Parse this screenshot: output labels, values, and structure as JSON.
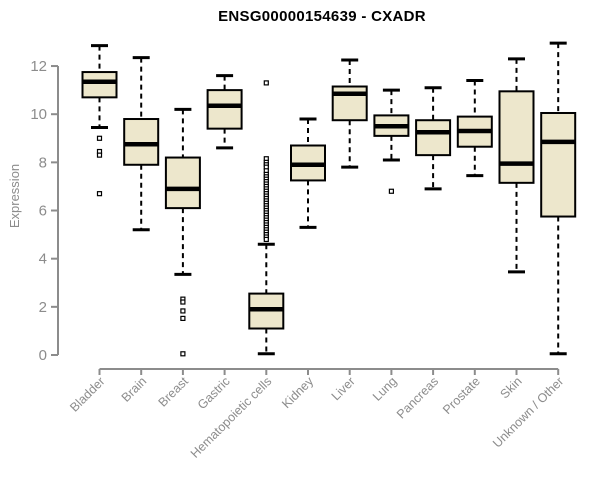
{
  "chart_data": {
    "type": "boxplot",
    "title": "ENSG00000154639 - CXADR",
    "ylabel": "Expression",
    "xlabel": "",
    "ylim": [
      0,
      13
    ],
    "yticks": [
      0,
      2,
      4,
      6,
      8,
      10,
      12
    ],
    "grid": false,
    "legend": "none",
    "colors": {
      "box_fill": "#EDE7CC",
      "box_stroke": "#000000",
      "median": "#000000",
      "whisker": "#000000",
      "outlier_fill": "#FFFFFF",
      "outlier_stroke": "#000000",
      "axis": "#8C8C8C",
      "tick_label": "#8C8C8C",
      "title": "#000000"
    },
    "categories": [
      "Bladder",
      "Brain",
      "Breast",
      "Gastric",
      "Hematopoietic cells",
      "Kidney",
      "Liver",
      "Lung",
      "Pancreas",
      "Prostate",
      "Skin",
      "Unknown / Other"
    ],
    "boxes": [
      {
        "label": "Bladder",
        "whisker_low": 9.45,
        "q1": 10.7,
        "median": 11.35,
        "q3": 11.75,
        "whisker_high": 12.85,
        "outliers": [
          9.0,
          8.45,
          8.3,
          6.7
        ]
      },
      {
        "label": "Brain",
        "whisker_low": 5.2,
        "q1": 7.9,
        "median": 8.75,
        "q3": 9.8,
        "whisker_high": 12.35,
        "outliers": []
      },
      {
        "label": "Breast",
        "whisker_low": 3.35,
        "q1": 6.1,
        "median": 6.9,
        "q3": 8.2,
        "whisker_high": 10.2,
        "outliers": [
          2.32,
          2.2,
          1.83,
          1.52,
          0.05
        ]
      },
      {
        "label": "Gastric",
        "whisker_low": 8.6,
        "q1": 9.4,
        "median": 10.35,
        "q3": 11.0,
        "whisker_high": 11.6,
        "outliers": []
      },
      {
        "label": "Hematopoietic cells",
        "whisker_low": 0.05,
        "q1": 1.1,
        "median": 1.9,
        "q3": 2.55,
        "whisker_high": 4.6,
        "outliers": [
          11.3,
          8.15,
          8.0,
          7.9,
          7.8,
          7.65,
          7.5,
          7.4,
          7.3,
          7.2,
          7.1,
          7.0,
          6.9,
          6.8,
          6.7,
          6.6,
          6.5,
          6.4,
          6.3,
          6.2,
          6.1,
          6.0,
          5.9,
          5.8,
          5.7,
          5.6,
          5.5,
          5.4,
          5.3,
          5.2,
          5.1,
          5.0,
          4.9,
          4.8
        ]
      },
      {
        "label": "Kidney",
        "whisker_low": 5.3,
        "q1": 7.25,
        "median": 7.9,
        "q3": 8.7,
        "whisker_high": 9.8,
        "outliers": []
      },
      {
        "label": "Liver",
        "whisker_low": 7.8,
        "q1": 9.75,
        "median": 10.85,
        "q3": 11.15,
        "whisker_high": 12.25,
        "outliers": []
      },
      {
        "label": "Lung",
        "whisker_low": 8.1,
        "q1": 9.1,
        "median": 9.5,
        "q3": 9.95,
        "whisker_high": 11.0,
        "outliers": [
          6.8
        ]
      },
      {
        "label": "Pancreas",
        "whisker_low": 6.9,
        "q1": 8.3,
        "median": 9.25,
        "q3": 9.75,
        "whisker_high": 11.1,
        "outliers": []
      },
      {
        "label": "Prostate",
        "whisker_low": 7.45,
        "q1": 8.65,
        "median": 9.3,
        "q3": 9.9,
        "whisker_high": 11.4,
        "outliers": []
      },
      {
        "label": "Skin",
        "whisker_low": 3.45,
        "q1": 7.15,
        "median": 7.95,
        "q3": 10.95,
        "whisker_high": 12.3,
        "outliers": []
      },
      {
        "label": "Unknown / Other",
        "whisker_low": 0.05,
        "q1": 5.75,
        "median": 8.85,
        "q3": 10.05,
        "whisker_high": 12.95,
        "outliers": []
      }
    ]
  }
}
